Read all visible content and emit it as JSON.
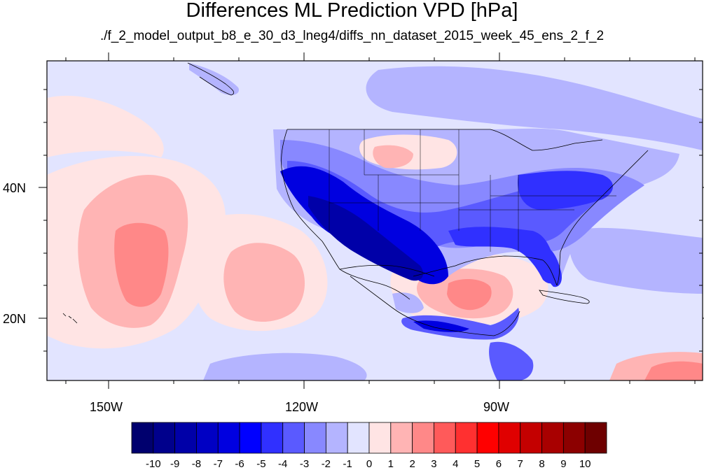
{
  "title": "Differences ML Prediction VPD [hPa]",
  "subtitle": "./f_2_model_output_b8_e_30_d3_lneg4/diffs_nn_dataset_2015_week_45_ens_2_f_2",
  "axes": {
    "latitude_labels": [
      "40N",
      "20N"
    ],
    "longitude_labels": [
      "150W",
      "120W",
      "90W"
    ]
  },
  "colorbar": {
    "labels": [
      "-10",
      "-9",
      "-8",
      "-7",
      "-6",
      "-5",
      "-4",
      "-3",
      "-2",
      "-1",
      "0",
      "1",
      "2",
      "3",
      "4",
      "5",
      "6",
      "7",
      "8",
      "9",
      "10"
    ],
    "colors": [
      "#00006e",
      "#00008c",
      "#0000a8",
      "#0000c4",
      "#0000e0",
      "#0000ff",
      "#3030ff",
      "#5a5aff",
      "#8888ff",
      "#b4b4ff",
      "#e2e4ff",
      "#ffe4e4",
      "#ffb4b4",
      "#ff8888",
      "#ff5a5a",
      "#ff3030",
      "#ff0000",
      "#e00000",
      "#c40000",
      "#a80000",
      "#8c0000",
      "#6e0000"
    ]
  },
  "colors": {
    "background_field": "#e2e4ff",
    "land_outline": "#000000"
  }
}
